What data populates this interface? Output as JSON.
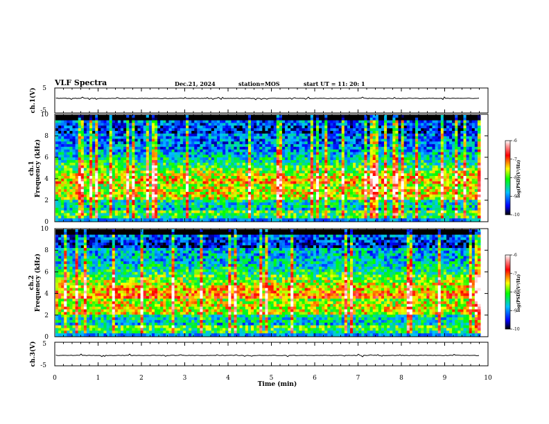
{
  "header": {
    "title": "VLF Spectra",
    "date": "Dec.21, 2024",
    "station": "station=MOS",
    "start": "start  UT =   11: 20: 1"
  },
  "chart_data": [
    {
      "type": "line",
      "panel": "ch1-waveform",
      "ylabel": "ch.1(V)",
      "ylim": [
        -5,
        5
      ],
      "ytick_labels": [
        "5",
        "-5"
      ],
      "baseline": 0,
      "color": "#000000"
    },
    {
      "type": "heatmap",
      "panel": "ch1-spectrogram",
      "ylabel": "ch.1\nFrequency (kHz)",
      "ylim": [
        0,
        10
      ],
      "yticks": [
        0,
        2,
        4,
        6,
        8,
        10
      ],
      "colorbar_label": "log(PSD)(V²/Hz)",
      "colorbar_ticks": [
        "-6",
        "-7",
        "-8",
        "-9",
        "-10"
      ],
      "zlim": [
        -10,
        -6
      ]
    },
    {
      "type": "heatmap",
      "panel": "ch2-spectrogram",
      "ylabel": "ch.2\nFrequency (kHz)",
      "ylim": [
        0,
        10
      ],
      "yticks": [
        0,
        2,
        4,
        6,
        8,
        10
      ],
      "colorbar_label": "log(PSD)(V²/Hz)",
      "colorbar_ticks": [
        "-6",
        "-7",
        "-8",
        "-9",
        "-10"
      ],
      "zlim": [
        -10,
        -6
      ]
    },
    {
      "type": "line",
      "panel": "ch3-waveform",
      "ylabel": "ch.3(V)",
      "ylim": [
        -5,
        5
      ],
      "ytick_labels": [
        "5",
        "-5"
      ],
      "baseline": 0,
      "color": "#000000"
    }
  ],
  "x_axis": {
    "label": "Time  (min)",
    "xlim": [
      0,
      10
    ],
    "ticks": [
      "0",
      "1",
      "2",
      "3",
      "4",
      "5",
      "6",
      "7",
      "8",
      "9",
      "10"
    ]
  },
  "colors": {
    "map": [
      "#000000",
      "#000080",
      "#0000ff",
      "#0080ff",
      "#00e0e0",
      "#00ff00",
      "#ffff00",
      "#ff8000",
      "#ff0000",
      "#ffb0b0",
      "#ffffff"
    ]
  }
}
